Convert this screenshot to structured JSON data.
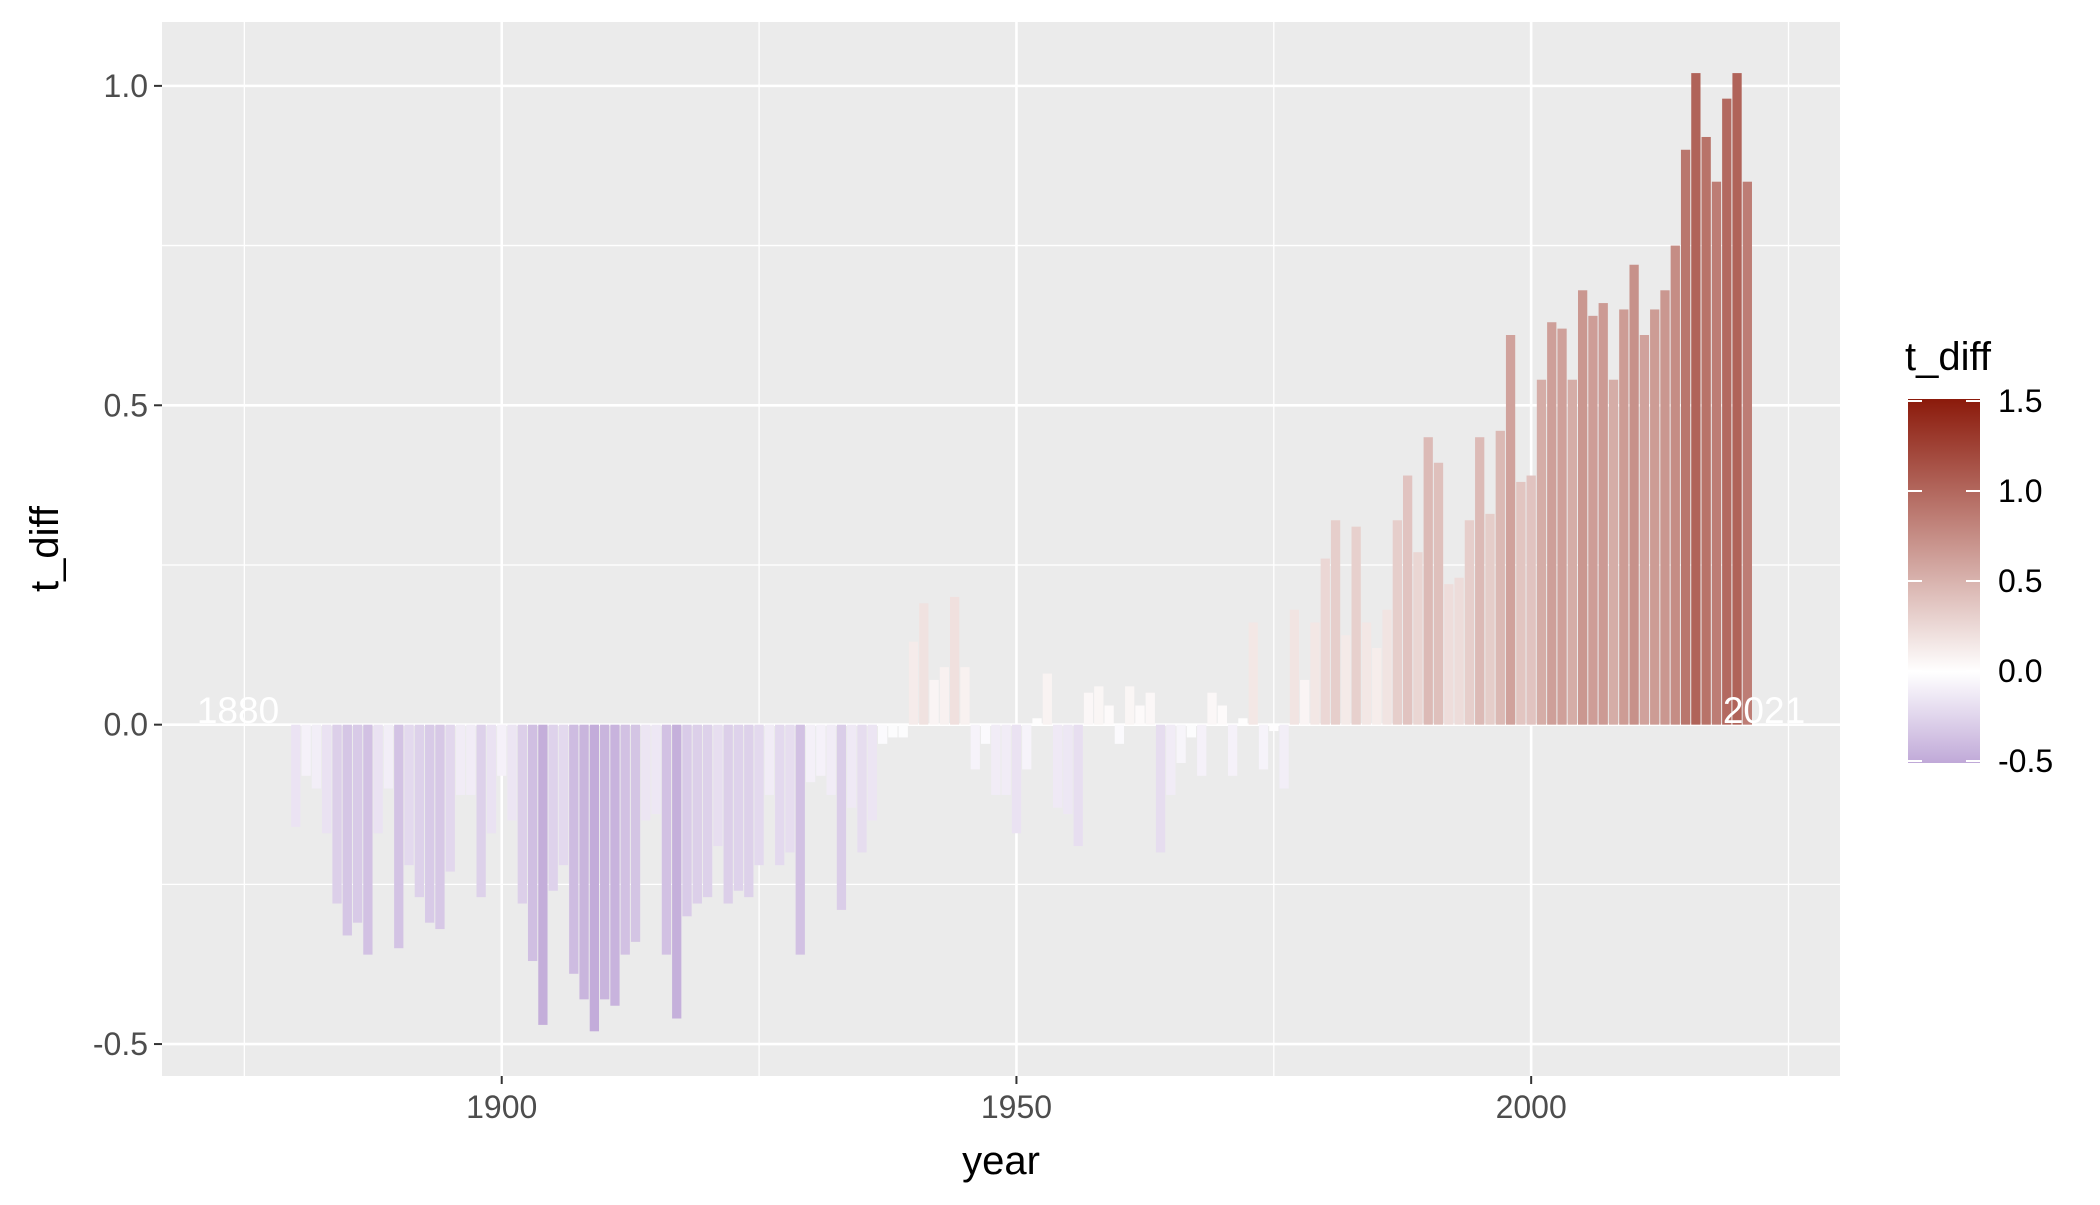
{
  "chart_data": {
    "type": "bar",
    "xlabel": "year",
    "ylabel": "t_diff",
    "xlim": [
      1867,
      2030
    ],
    "ylim": [
      -0.55,
      1.1
    ],
    "x_ticks": [
      1900,
      1950,
      2000
    ],
    "x_tick_labels": [
      "1900",
      "1950",
      "2000"
    ],
    "y_ticks": [
      -0.5,
      0.0,
      0.5,
      1.0
    ],
    "y_tick_labels": [
      "-0.5",
      "0.0",
      "0.5",
      "1.0"
    ],
    "grid": true,
    "annotations": [
      {
        "text": "1880",
        "x": 1880,
        "y": 0.0
      },
      {
        "text": "2021",
        "x": 2021,
        "y": 0.0
      }
    ],
    "legend": {
      "title": "t_diff",
      "placement": "right",
      "ticks": [
        1.5,
        1.0,
        0.5,
        0.0,
        -0.5
      ],
      "tick_labels": [
        "1.5",
        "1.0",
        "0.5",
        "0.0",
        "-0.5"
      ],
      "range": [
        -0.5,
        1.5
      ],
      "colors": {
        "low": "#c0a9d8",
        "mid": "#ffffff",
        "high": "#8b1a0b"
      }
    },
    "series": [
      {
        "x": [
          1880,
          1881,
          1882,
          1883,
          1884,
          1885,
          1886,
          1887,
          1888,
          1889,
          1890,
          1891,
          1892,
          1893,
          1894,
          1895,
          1896,
          1897,
          1898,
          1899,
          1900,
          1901,
          1902,
          1903,
          1904,
          1905,
          1906,
          1907,
          1908,
          1909,
          1910,
          1911,
          1912,
          1913,
          1914,
          1915,
          1916,
          1917,
          1918,
          1919,
          1920,
          1921,
          1922,
          1923,
          1924,
          1925,
          1926,
          1927,
          1928,
          1929,
          1930,
          1931,
          1932,
          1933,
          1934,
          1935,
          1936,
          1937,
          1938,
          1939,
          1940,
          1941,
          1942,
          1943,
          1944,
          1945,
          1946,
          1947,
          1948,
          1949,
          1950,
          1951,
          1952,
          1953,
          1954,
          1955,
          1956,
          1957,
          1958,
          1959,
          1960,
          1961,
          1962,
          1963,
          1964,
          1965,
          1966,
          1967,
          1968,
          1969,
          1970,
          1971,
          1972,
          1973,
          1974,
          1975,
          1976,
          1977,
          1978,
          1979,
          1980,
          1981,
          1982,
          1983,
          1984,
          1985,
          1986,
          1987,
          1988,
          1989,
          1990,
          1991,
          1992,
          1993,
          1994,
          1995,
          1996,
          1997,
          1998,
          1999,
          2000,
          2001,
          2002,
          2003,
          2004,
          2005,
          2006,
          2007,
          2008,
          2009,
          2010,
          2011,
          2012,
          2013,
          2014,
          2015,
          2016,
          2017,
          2018,
          2019,
          2020,
          2021
        ],
        "values": [
          -0.16,
          -0.08,
          -0.1,
          -0.17,
          -0.28,
          -0.33,
          -0.31,
          -0.36,
          -0.17,
          -0.1,
          -0.35,
          -0.22,
          -0.27,
          -0.31,
          -0.32,
          -0.23,
          -0.11,
          -0.11,
          -0.27,
          -0.17,
          -0.08,
          -0.15,
          -0.28,
          -0.37,
          -0.47,
          -0.26,
          -0.22,
          -0.39,
          -0.43,
          -0.48,
          -0.43,
          -0.44,
          -0.36,
          -0.34,
          -0.15,
          -0.14,
          -0.36,
          -0.46,
          -0.3,
          -0.28,
          -0.27,
          -0.19,
          -0.28,
          -0.26,
          -0.27,
          -0.22,
          -0.11,
          -0.22,
          -0.2,
          -0.36,
          -0.09,
          -0.08,
          -0.11,
          -0.29,
          -0.13,
          -0.2,
          -0.15,
          -0.03,
          -0.02,
          -0.02,
          0.13,
          0.19,
          0.07,
          0.09,
          0.2,
          0.09,
          -0.07,
          -0.03,
          -0.11,
          -0.11,
          -0.17,
          -0.07,
          0.01,
          0.08,
          -0.13,
          -0.14,
          -0.19,
          0.05,
          0.06,
          0.03,
          -0.03,
          0.06,
          0.03,
          0.05,
          -0.2,
          -0.11,
          -0.06,
          -0.02,
          -0.08,
          0.05,
          0.03,
          -0.08,
          0.01,
          0.16,
          -0.07,
          -0.01,
          -0.1,
          0.18,
          0.07,
          0.16,
          0.26,
          0.32,
          0.14,
          0.31,
          0.16,
          0.12,
          0.18,
          0.32,
          0.39,
          0.27,
          0.45,
          0.41,
          0.22,
          0.23,
          0.32,
          0.45,
          0.33,
          0.46,
          0.61,
          0.38,
          0.39,
          0.54,
          0.63,
          0.62,
          0.54,
          0.68,
          0.64,
          0.66,
          0.54,
          0.65,
          0.72,
          0.61,
          0.65,
          0.68,
          0.75,
          0.9,
          1.02,
          0.92,
          0.85,
          0.98,
          1.02,
          0.85
        ]
      }
    ]
  }
}
